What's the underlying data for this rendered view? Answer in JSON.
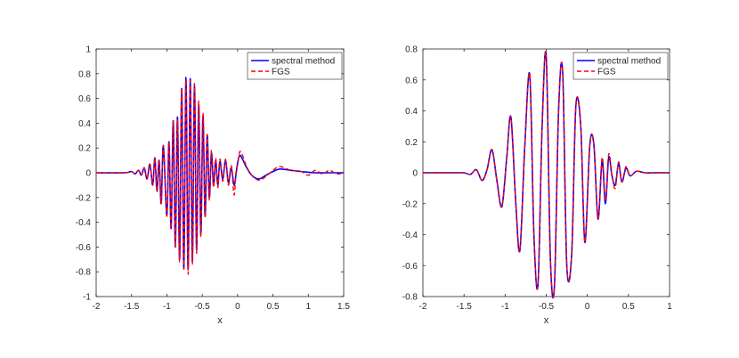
{
  "chart_data": [
    {
      "type": "line",
      "title": "",
      "xlabel": "x",
      "ylabel": "",
      "xlim": [
        -2,
        1.5
      ],
      "ylim": [
        -1,
        1
      ],
      "xticks": [
        "-2",
        "-1.5",
        "-1",
        "-0.5",
        "0",
        "0.5",
        "1",
        "1.5"
      ],
      "yticks": [
        "-1",
        "-0.8",
        "-0.6",
        "-0.4",
        "-0.2",
        "0",
        "0.2",
        "0.4",
        "0.6",
        "0.8",
        "1"
      ],
      "grid": false,
      "legend": "top-right",
      "series": [
        {
          "name": "spectral method",
          "color": "#0000ff",
          "style": "solid",
          "x": [
            -2.0,
            -1.6,
            -1.5,
            -1.45,
            -1.4,
            -1.36,
            -1.32,
            -1.28,
            -1.24,
            -1.2,
            -1.17,
            -1.14,
            -1.11,
            -1.08,
            -1.05,
            -1.0,
            -0.97,
            -0.94,
            -0.91,
            -0.88,
            -0.85,
            -0.82,
            -0.79,
            -0.76,
            -0.73,
            -0.7,
            -0.67,
            -0.64,
            -0.61,
            -0.58,
            -0.55,
            -0.52,
            -0.49,
            -0.46,
            -0.43,
            -0.4,
            -0.37,
            -0.34,
            -0.31,
            -0.28,
            -0.25,
            -0.21,
            -0.17,
            -0.13,
            -0.09,
            -0.05,
            -0.02,
            0.0,
            0.03,
            0.07,
            0.12,
            0.2,
            0.3,
            0.4,
            0.5,
            0.6,
            0.75,
            0.9,
            1.1,
            1.3,
            1.5
          ],
          "y": [
            0.0,
            0.0,
            0.01,
            -0.01,
            0.02,
            -0.02,
            0.04,
            -0.05,
            0.07,
            -0.1,
            0.12,
            -0.15,
            0.1,
            -0.25,
            0.22,
            -0.35,
            0.25,
            -0.45,
            0.42,
            -0.6,
            0.45,
            -0.7,
            0.68,
            -0.77,
            0.77,
            -0.78,
            0.76,
            -0.72,
            0.7,
            -0.62,
            0.55,
            -0.5,
            0.46,
            -0.35,
            0.3,
            -0.2,
            0.16,
            -0.1,
            0.1,
            -0.1,
            0.09,
            -0.05,
            0.1,
            -0.08,
            0.04,
            -0.1,
            0.0,
            0.08,
            0.14,
            0.11,
            0.05,
            -0.02,
            -0.05,
            -0.02,
            0.01,
            0.03,
            0.02,
            0.01,
            0.0,
            0.0,
            0.0
          ]
        },
        {
          "name": "FGS",
          "color": "#ff0000",
          "style": "dashed",
          "x": [
            -2.0,
            -1.6,
            -1.5,
            -1.45,
            -1.4,
            -1.36,
            -1.32,
            -1.28,
            -1.24,
            -1.2,
            -1.17,
            -1.14,
            -1.11,
            -1.08,
            -1.05,
            -1.0,
            -0.97,
            -0.94,
            -0.91,
            -0.88,
            -0.85,
            -0.82,
            -0.79,
            -0.76,
            -0.73,
            -0.7,
            -0.67,
            -0.64,
            -0.61,
            -0.58,
            -0.55,
            -0.52,
            -0.49,
            -0.46,
            -0.43,
            -0.4,
            -0.37,
            -0.34,
            -0.31,
            -0.28,
            -0.25,
            -0.21,
            -0.17,
            -0.13,
            -0.09,
            -0.05,
            -0.02,
            0.0,
            0.03,
            0.07,
            0.12,
            0.2,
            0.3,
            0.4,
            0.5,
            0.6,
            0.75,
            0.9,
            1.0,
            1.1,
            1.2,
            1.3,
            1.4,
            1.5
          ],
          "y": [
            0.0,
            0.0,
            0.01,
            -0.01,
            0.02,
            -0.02,
            0.04,
            -0.05,
            0.07,
            -0.1,
            0.12,
            -0.15,
            0.1,
            -0.25,
            0.22,
            -0.35,
            0.25,
            -0.45,
            0.42,
            -0.6,
            0.43,
            -0.72,
            0.68,
            -0.78,
            0.75,
            -0.82,
            0.74,
            -0.74,
            0.72,
            -0.65,
            0.58,
            -0.52,
            0.48,
            -0.36,
            0.31,
            -0.22,
            0.18,
            -0.12,
            0.12,
            -0.12,
            0.11,
            -0.07,
            0.11,
            -0.1,
            0.06,
            -0.18,
            0.02,
            0.06,
            0.17,
            0.14,
            0.06,
            -0.02,
            -0.06,
            -0.03,
            0.02,
            0.05,
            0.02,
            0.01,
            -0.02,
            0.02,
            -0.01,
            0.02,
            -0.01,
            0.0
          ]
        }
      ]
    },
    {
      "type": "line",
      "title": "",
      "xlabel": "x",
      "ylabel": "",
      "xlim": [
        -2,
        1
      ],
      "ylim": [
        -0.8,
        0.8
      ],
      "xticks": [
        "-2",
        "-1.5",
        "-1",
        "-0.5",
        "0",
        "0.5",
        "1"
      ],
      "yticks": [
        "-0.8",
        "-0.6",
        "-0.4",
        "-0.2",
        "0",
        "0.2",
        "0.4",
        "0.6",
        "0.8"
      ],
      "grid": false,
      "legend": "top-right",
      "series": [
        {
          "name": "spectral method",
          "color": "#0000ff",
          "style": "solid",
          "x": [
            -2.0,
            -1.6,
            -1.5,
            -1.42,
            -1.35,
            -1.28,
            -1.22,
            -1.16,
            -1.1,
            -1.04,
            -0.98,
            -0.93,
            -0.87,
            -0.82,
            -0.76,
            -0.7,
            -0.65,
            -0.6,
            -0.55,
            -0.5,
            -0.45,
            -0.4,
            -0.35,
            -0.3,
            -0.25,
            -0.19,
            -0.14,
            -0.08,
            -0.03,
            0.03,
            0.08,
            0.13,
            0.18,
            0.22,
            0.26,
            0.3,
            0.34,
            0.38,
            0.42,
            0.47,
            0.52,
            0.6,
            0.7,
            0.8,
            1.0
          ],
          "y": [
            0.0,
            0.0,
            0.0,
            -0.01,
            0.02,
            -0.05,
            0.02,
            0.15,
            -0.05,
            -0.22,
            0.1,
            0.36,
            -0.2,
            -0.5,
            0.18,
            0.63,
            -0.4,
            -0.72,
            0.3,
            0.75,
            -0.55,
            -0.73,
            0.4,
            0.65,
            -0.6,
            -0.52,
            0.43,
            0.3,
            -0.45,
            0.18,
            0.18,
            -0.3,
            0.08,
            -0.2,
            0.1,
            -0.02,
            -0.08,
            0.06,
            -0.06,
            0.03,
            -0.02,
            0.01,
            0.0,
            0.0,
            0.0
          ]
        },
        {
          "name": "FGS",
          "color": "#ff0000",
          "style": "dashed",
          "x": [
            -2.0,
            -1.6,
            -1.5,
            -1.42,
            -1.35,
            -1.28,
            -1.22,
            -1.16,
            -1.1,
            -1.04,
            -0.98,
            -0.93,
            -0.87,
            -0.82,
            -0.76,
            -0.7,
            -0.65,
            -0.6,
            -0.55,
            -0.5,
            -0.45,
            -0.4,
            -0.35,
            -0.3,
            -0.25,
            -0.19,
            -0.14,
            -0.08,
            -0.03,
            0.03,
            0.08,
            0.13,
            0.18,
            0.22,
            0.26,
            0.3,
            0.34,
            0.38,
            0.42,
            0.47,
            0.52,
            0.6,
            0.7,
            0.8,
            1.0
          ],
          "y": [
            0.0,
            0.0,
            0.0,
            -0.01,
            0.02,
            -0.05,
            0.02,
            0.15,
            -0.05,
            -0.22,
            0.1,
            0.36,
            -0.2,
            -0.5,
            0.18,
            0.63,
            -0.4,
            -0.72,
            0.3,
            0.75,
            -0.55,
            -0.73,
            0.4,
            0.65,
            -0.6,
            -0.52,
            0.43,
            0.3,
            -0.45,
            0.18,
            0.18,
            -0.3,
            0.1,
            -0.18,
            0.12,
            -0.02,
            -0.1,
            0.07,
            -0.06,
            0.04,
            -0.02,
            0.01,
            0.0,
            0.0,
            0.0
          ]
        }
      ]
    }
  ]
}
